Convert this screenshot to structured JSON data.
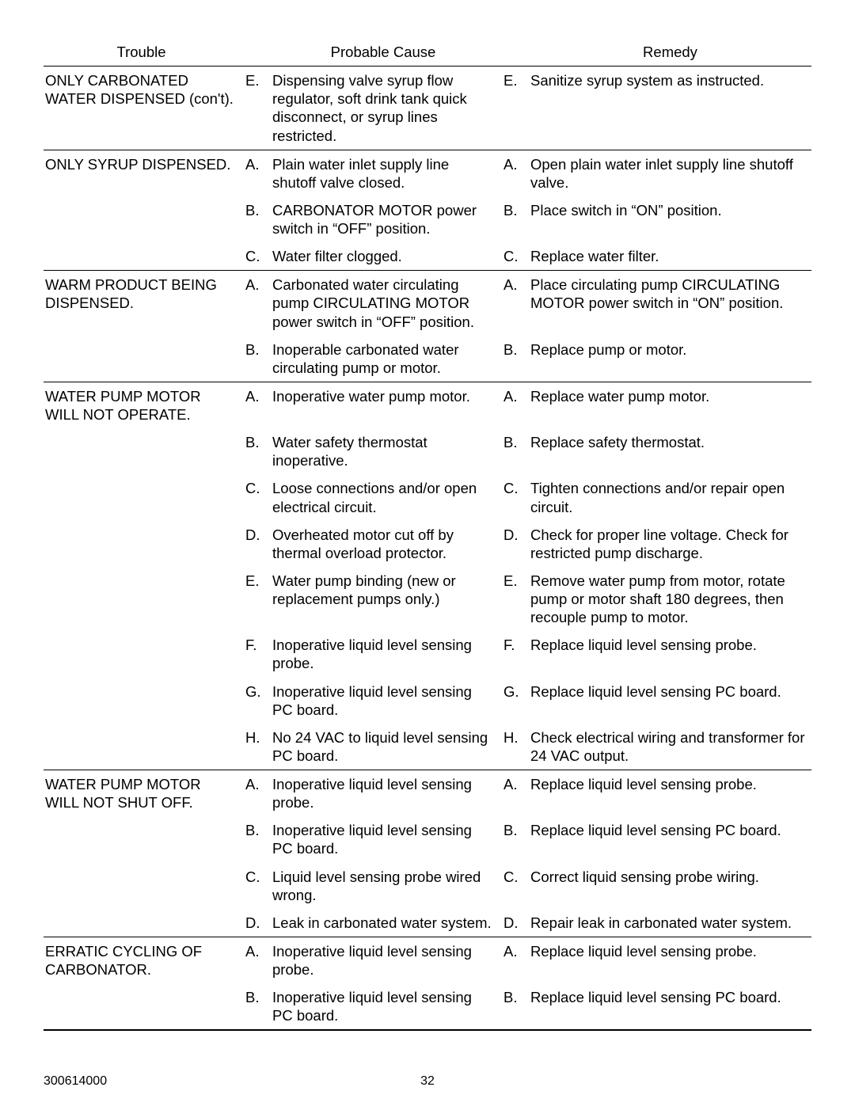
{
  "columns": {
    "trouble": "Trouble",
    "cause": "Probable Cause",
    "remedy": "Remedy"
  },
  "footer": {
    "docnum": "300614000",
    "page": "32"
  },
  "sections": [
    {
      "trouble": "ONLY CARBONATED WATER DISPENSED (con't).",
      "rows": [
        {
          "l1": "E.",
          "cause": "Dispensing valve syrup flow regulator, soft drink tank quick disconnect, or syrup lines restricted.",
          "l2": "E.",
          "remedy": "Sanitize syrup system as instructed."
        }
      ]
    },
    {
      "trouble": "ONLY SYRUP DISPENSED.",
      "rows": [
        {
          "l1": "A.",
          "cause": "Plain water inlet supply line shutoff valve closed.",
          "l2": "A.",
          "remedy": "Open plain water inlet supply line shutoff valve."
        },
        {
          "l1": "B.",
          "cause": "CARBONATOR MOTOR power switch  in “OFF” position.",
          "l2": "B.",
          "remedy": "Place switch in “ON” position."
        },
        {
          "l1": "C.",
          "cause": "Water filter clogged.",
          "l2": "C.",
          "remedy": "Replace water filter."
        }
      ]
    },
    {
      "trouble": "WARM PRODUCT BEING DISPENSED.",
      "rows": [
        {
          "l1": "A.",
          "cause": "Carbonated water circulating pump CIRCULATING MOTOR power switch in “OFF” position.",
          "l2": "A.",
          "remedy": "Place circulating pump CIRCULATING MOTOR power switch in “ON” position."
        },
        {
          "l1": "B.",
          "cause": " Inoperable carbonated water circulating pump or motor.",
          "l2": "B.",
          "remedy": "Replace pump or motor."
        }
      ]
    },
    {
      "trouble": "WATER PUMP MOTOR WILL NOT OPERATE.",
      "rows": [
        {
          "l1": "A.",
          "cause": "Inoperative water pump motor.",
          "l2": "A.",
          "remedy": "Replace water pump motor."
        },
        {
          "l1": "B.",
          "cause": "Water safety thermostat inoperative.",
          "l2": "B.",
          "remedy": "Replace safety thermostat."
        },
        {
          "l1": "C.",
          "cause": "Loose connections and/or open electrical circuit.",
          "l2": "C.",
          "remedy": "Tighten connections and/or repair open circuit."
        },
        {
          "l1": "D.",
          "cause": "Overheated motor cut off by thermal overload protector.",
          "l2": "D.",
          "remedy": "Check for proper line voltage. Check for restricted pump discharge."
        },
        {
          "l1": "E.",
          "cause": "Water pump binding (new or replacement pumps only.)",
          "l2": "E.",
          "remedy": "Remove water pump from motor, rotate pump or motor shaft 180 degrees, then recouple pump to motor."
        },
        {
          "l1": "F.",
          "cause": "Inoperative liquid level sensing probe.",
          "l2": "F.",
          "remedy": "Replace liquid level sensing probe."
        },
        {
          "l1": "G.",
          "cause": "Inoperative liquid level sensing PC board.",
          "l2": "G.",
          "remedy": "Replace liquid level sensing PC board."
        },
        {
          "l1": "H.",
          "cause": "No 24 VAC to liquid level sensing PC board.",
          "l2": "H.",
          "remedy": "Check electrical wiring and transformer for 24 VAC output."
        }
      ]
    },
    {
      "trouble": "WATER PUMP MOTOR WILL NOT SHUT OFF.",
      "rows": [
        {
          "l1": "A.",
          "cause": "Inoperative liquid level sensing probe.",
          "l2": "A.",
          "remedy": "Replace liquid level sensing probe."
        },
        {
          "l1": "B.",
          "cause": "Inoperative liquid level sensing PC board.",
          "l2": "B.",
          "remedy": "Replace liquid level sensing PC board."
        },
        {
          "l1": "C.",
          "cause": "Liquid level sensing probe wired wrong.",
          "l2": "C.",
          "remedy": "Correct liquid sensing probe wiring."
        },
        {
          "l1": "D.",
          "cause": "Leak in carbonated water system.",
          "l2": "D.",
          "remedy": "Repair leak in carbonated water system."
        }
      ]
    },
    {
      "trouble": "ERRATIC CYCLING OF CARBONATOR.",
      "rows": [
        {
          "l1": "A.",
          "cause": "Inoperative liquid level sensing probe.",
          "l2": "A.",
          "remedy": "Replace liquid level sensing probe."
        },
        {
          "l1": "B.",
          "cause": "Inoperative liquid level sensing PC board.",
          "l2": "B.",
          "remedy": "Replace liquid level sensing PC board."
        }
      ]
    }
  ]
}
